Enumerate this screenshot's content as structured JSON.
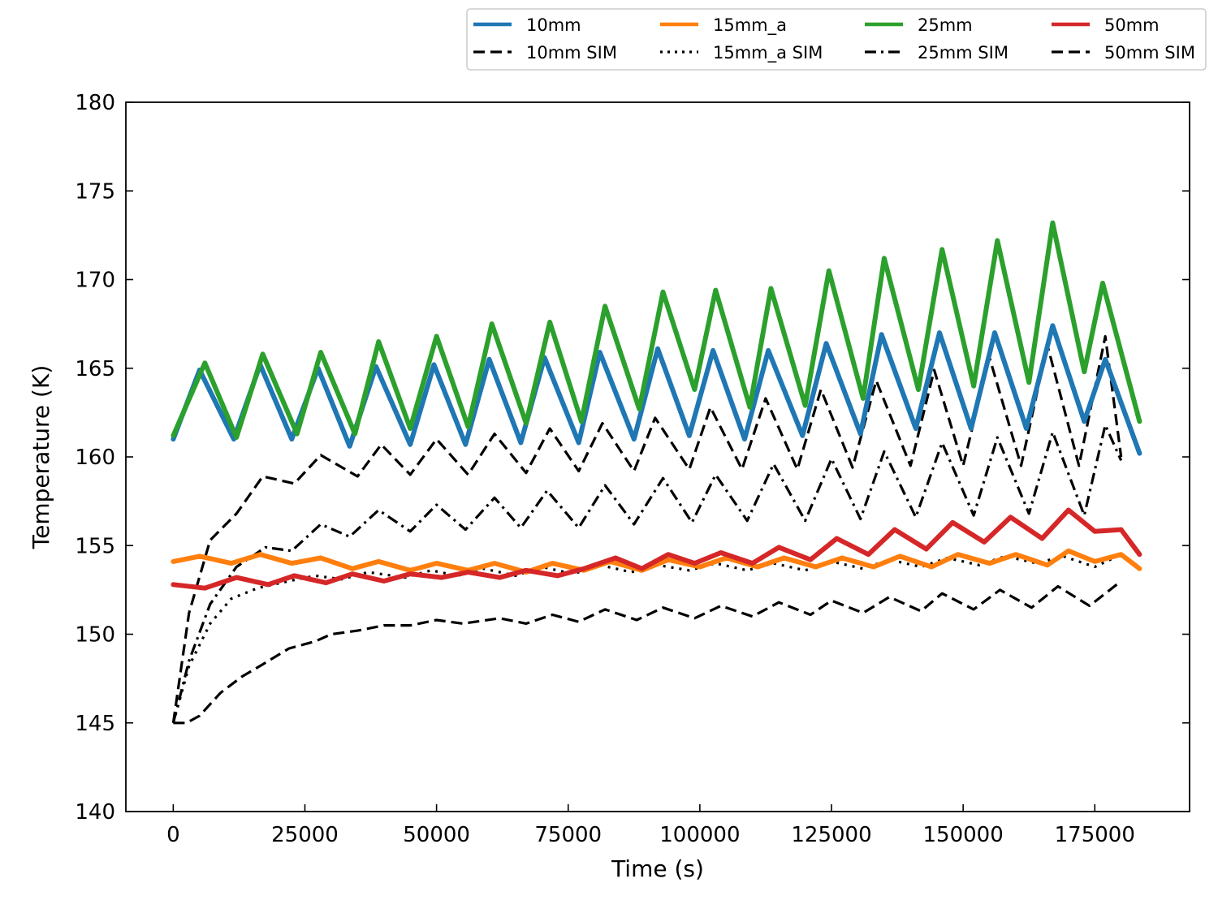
{
  "chart_data": {
    "type": "line",
    "title": "",
    "xlabel": "Time (s)",
    "ylabel": "Temperature (K)",
    "xlim": [
      -9000,
      193000
    ],
    "ylim": [
      140,
      180
    ],
    "xticks": [
      0,
      25000,
      50000,
      75000,
      100000,
      125000,
      150000,
      175000
    ],
    "xtick_labels": [
      "0",
      "25000",
      "50000",
      "75000",
      "100000",
      "125000",
      "150000",
      "175000"
    ],
    "yticks": [
      140,
      145,
      150,
      155,
      160,
      165,
      170,
      175,
      180
    ],
    "ytick_labels": [
      "140",
      "145",
      "150",
      "155",
      "160",
      "165",
      "170",
      "175",
      "180"
    ],
    "grid": false,
    "legend_position": "top-right, above plot",
    "series": [
      {
        "name": "10mm",
        "color": "#1f77b4",
        "style": "solid",
        "x": [
          0,
          5000,
          11500,
          16500,
          22500,
          27500,
          33500,
          38500,
          45000,
          49500,
          55500,
          60000,
          66000,
          70500,
          77000,
          81000,
          87500,
          92000,
          98000,
          102500,
          108500,
          113000,
          119500,
          124000,
          130500,
          134500,
          141000,
          145500,
          151500,
          156000,
          162000,
          167000,
          173000,
          177000,
          183500
        ],
        "y": [
          161.0,
          164.9,
          161.0,
          165.2,
          161.0,
          165.0,
          160.6,
          165.1,
          160.7,
          165.2,
          160.7,
          165.5,
          160.8,
          165.6,
          160.8,
          165.9,
          161.0,
          166.1,
          161.2,
          166.0,
          161.0,
          166.0,
          161.2,
          166.4,
          161.3,
          166.9,
          161.6,
          167.0,
          161.6,
          167.0,
          161.6,
          167.4,
          162.0,
          165.5,
          160.2
        ]
      },
      {
        "name": "15mm_a",
        "color": "#ff7f0e",
        "style": "solid",
        "x": [
          0,
          5000,
          11000,
          16500,
          22500,
          28000,
          34000,
          39000,
          45000,
          50000,
          56000,
          61000,
          67000,
          72000,
          78000,
          83000,
          89000,
          94000,
          100000,
          105000,
          111000,
          116000,
          122000,
          127000,
          133000,
          138000,
          144000,
          149000,
          155000,
          160000,
          166000,
          170000,
          175000,
          180000,
          183500
        ],
        "y": [
          154.1,
          154.4,
          154.0,
          154.5,
          154.0,
          154.3,
          153.7,
          154.1,
          153.6,
          154.0,
          153.6,
          154.0,
          153.5,
          154.0,
          153.6,
          154.1,
          153.6,
          154.2,
          153.8,
          154.3,
          153.8,
          154.3,
          153.8,
          154.3,
          153.8,
          154.4,
          153.8,
          154.5,
          154.0,
          154.5,
          153.9,
          154.7,
          154.1,
          154.5,
          153.7
        ]
      },
      {
        "name": "25mm",
        "color": "#2ca02c",
        "style": "solid",
        "x": [
          0,
          6000,
          12000,
          17000,
          23500,
          28000,
          34500,
          39000,
          45000,
          50000,
          56000,
          60500,
          67000,
          71500,
          77500,
          82000,
          88500,
          93000,
          99000,
          103000,
          109500,
          113500,
          120000,
          124500,
          131000,
          135000,
          141500,
          146000,
          152000,
          156500,
          162500,
          167000,
          173000,
          176500,
          183500
        ],
        "y": [
          161.2,
          165.3,
          161.1,
          165.8,
          161.3,
          165.9,
          161.3,
          166.5,
          161.6,
          166.8,
          161.7,
          167.5,
          161.9,
          167.6,
          162.0,
          168.5,
          162.7,
          169.3,
          163.8,
          169.4,
          162.8,
          169.5,
          162.9,
          170.5,
          163.3,
          171.2,
          163.8,
          171.7,
          164.0,
          172.2,
          164.2,
          173.2,
          164.8,
          169.8,
          162.0
        ]
      },
      {
        "name": "50mm",
        "color": "#d62728",
        "style": "solid",
        "x": [
          0,
          6000,
          12000,
          18000,
          23000,
          29000,
          34000,
          40000,
          45000,
          51000,
          56000,
          62000,
          67000,
          73000,
          78000,
          84000,
          89000,
          94000,
          99000,
          104000,
          110000,
          115000,
          121000,
          126000,
          132000,
          137000,
          143000,
          148000,
          154000,
          159000,
          165000,
          170000,
          175000,
          180000,
          183500
        ],
        "y": [
          152.8,
          152.6,
          153.2,
          152.8,
          153.3,
          152.9,
          153.4,
          153.0,
          153.4,
          153.2,
          153.5,
          153.2,
          153.6,
          153.3,
          153.7,
          154.3,
          153.7,
          154.5,
          154.0,
          154.6,
          154.0,
          154.9,
          154.2,
          155.4,
          154.5,
          155.9,
          154.8,
          156.3,
          155.2,
          156.6,
          155.4,
          157.0,
          155.8,
          155.9,
          154.5
        ]
      },
      {
        "name": "10mm SIM",
        "color": "#000000",
        "style": "dashed",
        "x": [
          0,
          2500,
          5000,
          9000,
          13000,
          17000,
          22000,
          27000,
          30000,
          35000,
          40000,
          45000,
          50000,
          55000,
          62000,
          67000,
          72000,
          77000,
          82000,
          88000,
          93000,
          99000,
          104000,
          110000,
          115000,
          121000,
          125000,
          131000,
          136000,
          142000,
          146000,
          152000,
          157000,
          163000,
          168000,
          174000,
          180000
        ],
        "y": [
          145.0,
          145.0,
          145.4,
          146.7,
          147.6,
          148.3,
          149.2,
          149.6,
          150.0,
          150.2,
          150.5,
          150.5,
          150.8,
          150.6,
          150.9,
          150.6,
          151.1,
          150.7,
          151.4,
          150.8,
          151.5,
          150.9,
          151.6,
          151.0,
          151.8,
          151.1,
          151.9,
          151.2,
          152.1,
          151.3,
          152.3,
          151.4,
          152.5,
          151.5,
          152.7,
          151.6,
          153.0
        ]
      },
      {
        "name": "15mm_a SIM",
        "color": "#000000",
        "style": "dotted",
        "x": [
          0,
          3000,
          7000,
          11000,
          16000,
          22000,
          27000,
          32000,
          37000,
          44000,
          49000,
          54000,
          59000,
          65000,
          70000,
          76000,
          81000,
          87000,
          92000,
          98000,
          103000,
          109000,
          114000,
          120000,
          125000,
          131000,
          136000,
          142000,
          147000,
          153000,
          158000,
          164000,
          169000,
          175000,
          180000
        ],
        "y": [
          145.0,
          148.2,
          150.6,
          152.0,
          152.6,
          153.0,
          153.3,
          153.1,
          153.5,
          153.2,
          153.6,
          153.3,
          153.7,
          153.3,
          153.8,
          153.4,
          153.9,
          153.5,
          153.9,
          153.6,
          154.0,
          153.6,
          154.0,
          153.6,
          154.1,
          153.7,
          154.2,
          153.8,
          154.3,
          153.9,
          154.4,
          154.0,
          154.4,
          153.8,
          154.5
        ]
      },
      {
        "name": "25mm SIM",
        "color": "#000000",
        "style": "dashdot",
        "x": [
          0,
          3000,
          7000,
          12000,
          17500,
          22500,
          28000,
          33500,
          39000,
          45000,
          50000,
          55500,
          61000,
          66000,
          71000,
          77000,
          82000,
          87500,
          93000,
          98500,
          103000,
          109000,
          114000,
          120000,
          125000,
          130500,
          135000,
          141000,
          146000,
          152000,
          156500,
          162500,
          167000,
          173000,
          177000,
          180000
        ],
        "y": [
          145.0,
          148.5,
          151.7,
          153.8,
          154.9,
          154.7,
          156.2,
          155.5,
          157.0,
          155.8,
          157.3,
          155.9,
          157.7,
          156.0,
          158.1,
          156.0,
          158.4,
          156.2,
          158.8,
          156.3,
          159.0,
          156.4,
          159.6,
          156.4,
          159.9,
          156.5,
          160.3,
          156.6,
          160.8,
          156.7,
          161.1,
          156.8,
          161.4,
          156.7,
          161.8,
          159.8
        ]
      },
      {
        "name": "50mm SIM",
        "color": "#000000",
        "style": "dashed",
        "x": [
          0,
          3000,
          7000,
          12000,
          17000,
          23000,
          28000,
          35000,
          39500,
          45000,
          50000,
          56000,
          61000,
          67000,
          71500,
          77000,
          81500,
          87500,
          91500,
          98000,
          102000,
          108000,
          112500,
          118500,
          123000,
          129000,
          133500,
          140000,
          144500,
          150000,
          155000,
          161000,
          166000,
          172000,
          177000,
          180000
        ],
        "y": [
          145.0,
          151.2,
          155.3,
          156.8,
          158.9,
          158.5,
          160.1,
          158.9,
          160.7,
          159.0,
          161.0,
          159.0,
          161.3,
          159.1,
          161.6,
          159.2,
          161.9,
          159.2,
          162.2,
          159.3,
          162.8,
          159.3,
          163.3,
          159.3,
          163.8,
          159.4,
          164.3,
          159.5,
          164.9,
          159.5,
          165.6,
          159.5,
          166.3,
          159.5,
          166.8,
          160.0
        ]
      }
    ]
  }
}
